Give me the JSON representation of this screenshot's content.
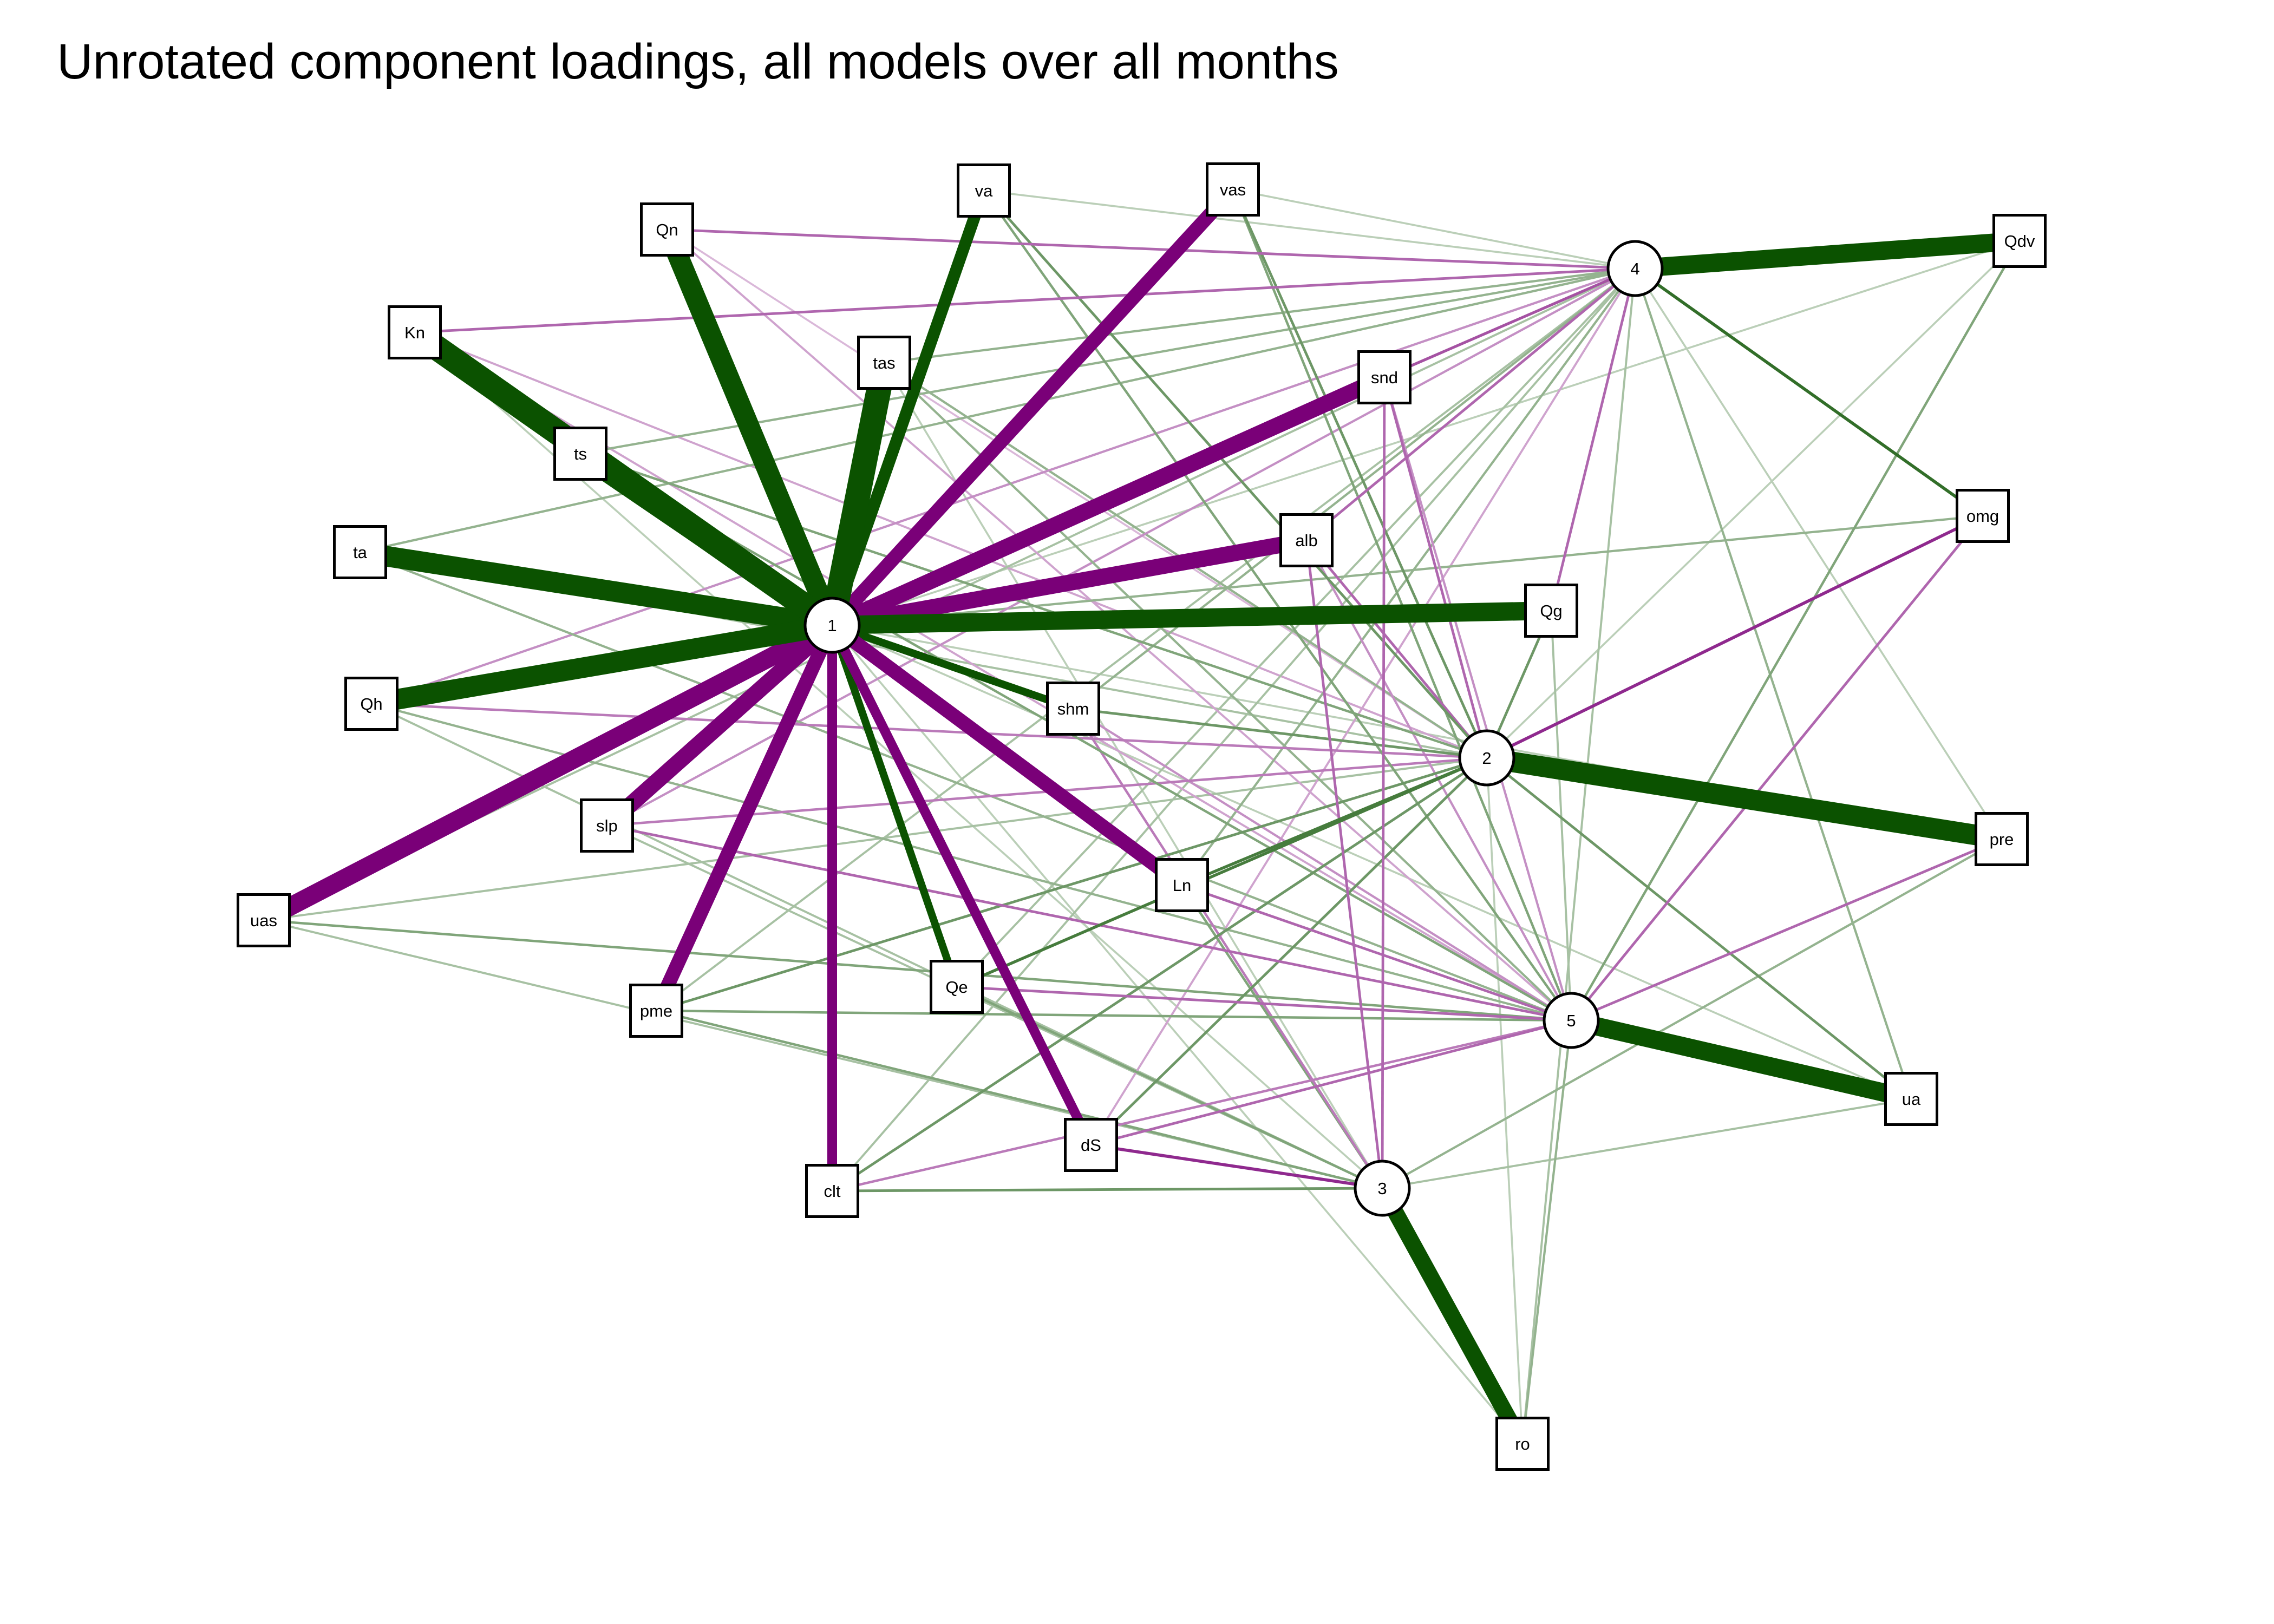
{
  "title": "Unrotated component loadings, all models over all months",
  "colors": {
    "positive": "#0b5200",
    "negative": "#7a0078"
  },
  "components": [
    "1",
    "2",
    "3",
    "4",
    "5"
  ],
  "variables": [
    "va",
    "vas",
    "Qn",
    "Qdv",
    "Kn",
    "tas",
    "snd",
    "ts",
    "omg",
    "ta",
    "alb",
    "Qg",
    "Qh",
    "shm",
    "slp",
    "pre",
    "uas",
    "Ln",
    "Qe",
    "pme",
    "ua",
    "dS",
    "clt",
    "ro"
  ],
  "loadings": [
    {
      "component": "1",
      "variable": "Qn",
      "value": 0.85
    },
    {
      "component": "1",
      "variable": "Kn",
      "value": 0.95
    },
    {
      "component": "1",
      "variable": "ts",
      "value": 0.85
    },
    {
      "component": "1",
      "variable": "ta",
      "value": 0.85
    },
    {
      "component": "1",
      "variable": "Qh",
      "value": 0.85
    },
    {
      "component": "1",
      "variable": "va",
      "value": 0.65
    },
    {
      "component": "1",
      "variable": "tas",
      "value": 0.95
    },
    {
      "component": "1",
      "variable": "vas",
      "value": -0.7
    },
    {
      "component": "1",
      "variable": "snd",
      "value": -0.75
    },
    {
      "component": "1",
      "variable": "alb",
      "value": -0.75
    },
    {
      "component": "1",
      "variable": "Qg",
      "value": 0.8
    },
    {
      "component": "1",
      "variable": "shm",
      "value": 0.55
    },
    {
      "component": "1",
      "variable": "uas",
      "value": -0.8
    },
    {
      "component": "1",
      "variable": "slp",
      "value": -0.75
    },
    {
      "component": "1",
      "variable": "pme",
      "value": -0.7
    },
    {
      "component": "1",
      "variable": "clt",
      "value": -0.6
    },
    {
      "component": "1",
      "variable": "dS",
      "value": -0.6
    },
    {
      "component": "1",
      "variable": "Ln",
      "value": -0.7
    },
    {
      "component": "1",
      "variable": "Qe",
      "value": 0.55
    },
    {
      "component": "1",
      "variable": "omg",
      "value": 0.2
    },
    {
      "component": "1",
      "variable": "Qdv",
      "value": 0.1
    },
    {
      "component": "1",
      "variable": "ua",
      "value": 0.1
    },
    {
      "component": "1",
      "variable": "pre",
      "value": 0.1
    },
    {
      "component": "1",
      "variable": "ro",
      "value": 0.1
    },
    {
      "component": "2",
      "variable": "pre",
      "value": 0.85
    },
    {
      "component": "2",
      "variable": "omg",
      "value": -0.45
    },
    {
      "component": "2",
      "variable": "Ln",
      "value": 0.4
    },
    {
      "component": "2",
      "variable": "Qe",
      "value": 0.4
    },
    {
      "component": "2",
      "variable": "Qg",
      "value": 0.3
    },
    {
      "component": "2",
      "variable": "shm",
      "value": 0.3
    },
    {
      "component": "2",
      "variable": "snd",
      "value": -0.3
    },
    {
      "component": "2",
      "variable": "alb",
      "value": -0.3
    },
    {
      "component": "2",
      "variable": "pme",
      "value": 0.3
    },
    {
      "component": "2",
      "variable": "clt",
      "value": 0.3
    },
    {
      "component": "2",
      "variable": "ua",
      "value": 0.3
    },
    {
      "component": "2",
      "variable": "dS",
      "value": 0.3
    },
    {
      "component": "2",
      "variable": "va",
      "value": 0.3
    },
    {
      "component": "2",
      "variable": "vas",
      "value": 0.3
    },
    {
      "component": "2",
      "variable": "Qh",
      "value": -0.25
    },
    {
      "component": "2",
      "variable": "slp",
      "value": -0.25
    },
    {
      "component": "2",
      "variable": "ts",
      "value": 0.25
    },
    {
      "component": "2",
      "variable": "tas",
      "value": 0.2
    },
    {
      "component": "2",
      "variable": "uas",
      "value": 0.15
    },
    {
      "component": "2",
      "variable": "ta",
      "value": 0.15
    },
    {
      "component": "2",
      "variable": "Kn",
      "value": -0.15
    },
    {
      "component": "2",
      "variable": "Qn",
      "value": -0.1
    },
    {
      "component": "2",
      "variable": "ro",
      "value": 0.1
    },
    {
      "component": "2",
      "variable": "Qdv",
      "value": 0.1
    },
    {
      "component": "3",
      "variable": "ro",
      "value": 0.75
    },
    {
      "component": "3",
      "variable": "dS",
      "value": -0.45
    },
    {
      "component": "3",
      "variable": "clt",
      "value": 0.3
    },
    {
      "component": "3",
      "variable": "snd",
      "value": -0.3
    },
    {
      "component": "3",
      "variable": "alb",
      "value": -0.3
    },
    {
      "component": "3",
      "variable": "Qe",
      "value": 0.25
    },
    {
      "component": "3",
      "variable": "pme",
      "value": 0.25
    },
    {
      "component": "3",
      "variable": "Ln",
      "value": 0.25
    },
    {
      "component": "3",
      "variable": "shm",
      "value": -0.25
    },
    {
      "component": "3",
      "variable": "pre",
      "value": 0.2
    },
    {
      "component": "3",
      "variable": "ua",
      "value": 0.15
    },
    {
      "component": "3",
      "variable": "Qh",
      "value": 0.15
    },
    {
      "component": "3",
      "variable": "uas",
      "value": 0.15
    },
    {
      "component": "3",
      "variable": "slp",
      "value": 0.15
    },
    {
      "component": "3",
      "variable": "tas",
      "value": 0.1
    },
    {
      "component": "3",
      "variable": "Kn",
      "value": 0.1
    },
    {
      "component": "4",
      "variable": "Qdv",
      "value": 0.8
    },
    {
      "component": "4",
      "variable": "omg",
      "value": 0.45
    },
    {
      "component": "4",
      "variable": "snd",
      "value": -0.35
    },
    {
      "component": "4",
      "variable": "alb",
      "value": -0.3
    },
    {
      "component": "4",
      "variable": "Qn",
      "value": -0.3
    },
    {
      "component": "4",
      "variable": "Kn",
      "value": -0.3
    },
    {
      "component": "4",
      "variable": "Qg",
      "value": -0.3
    },
    {
      "component": "4",
      "variable": "ts",
      "value": 0.2
    },
    {
      "component": "4",
      "variable": "ta",
      "value": 0.2
    },
    {
      "component": "4",
      "variable": "Qh",
      "value": -0.2
    },
    {
      "component": "4",
      "variable": "tas",
      "value": 0.2
    },
    {
      "component": "4",
      "variable": "shm",
      "value": 0.2
    },
    {
      "component": "4",
      "variable": "slp",
      "value": -0.2
    },
    {
      "component": "4",
      "variable": "Ln",
      "value": 0.2
    },
    {
      "component": "4",
      "variable": "uas",
      "value": 0.15
    },
    {
      "component": "4",
      "variable": "pme",
      "value": 0.15
    },
    {
      "component": "4",
      "variable": "Qe",
      "value": 0.15
    },
    {
      "component": "4",
      "variable": "dS",
      "value": -0.15
    },
    {
      "component": "4",
      "variable": "clt",
      "value": 0.15
    },
    {
      "component": "4",
      "variable": "ua",
      "value": 0.2
    },
    {
      "component": "4",
      "variable": "ro",
      "value": 0.15
    },
    {
      "component": "4",
      "variable": "pre",
      "value": 0.1
    },
    {
      "component": "4",
      "variable": "va",
      "value": 0.1
    },
    {
      "component": "4",
      "variable": "vas",
      "value": 0.1
    },
    {
      "component": "5",
      "variable": "ua",
      "value": 0.8
    },
    {
      "component": "5",
      "variable": "omg",
      "value": -0.3
    },
    {
      "component": "5",
      "variable": "pre",
      "value": -0.3
    },
    {
      "component": "5",
      "variable": "Qe",
      "value": -0.3
    },
    {
      "component": "5",
      "variable": "Ln",
      "value": -0.3
    },
    {
      "component": "5",
      "variable": "slp",
      "value": -0.3
    },
    {
      "component": "5",
      "variable": "dS",
      "value": -0.3
    },
    {
      "component": "5",
      "variable": "Qdv",
      "value": 0.25
    },
    {
      "component": "5",
      "variable": "pme",
      "value": 0.25
    },
    {
      "component": "5",
      "variable": "uas",
      "value": 0.25
    },
    {
      "component": "5",
      "variable": "clt",
      "value": -0.25
    },
    {
      "component": "5",
      "variable": "va",
      "value": 0.25
    },
    {
      "component": "5",
      "variable": "vas",
      "value": 0.25
    },
    {
      "component": "5",
      "variable": "ts",
      "value": 0.25
    },
    {
      "component": "5",
      "variable": "ta",
      "value": 0.2
    },
    {
      "component": "5",
      "variable": "Qh",
      "value": 0.2
    },
    {
      "component": "5",
      "variable": "shm",
      "value": -0.2
    },
    {
      "component": "5",
      "variable": "tas",
      "value": 0.2
    },
    {
      "component": "5",
      "variable": "alb",
      "value": -0.2
    },
    {
      "component": "5",
      "variable": "snd",
      "value": -0.2
    },
    {
      "component": "5",
      "variable": "Kn",
      "value": -0.15
    },
    {
      "component": "5",
      "variable": "Qn",
      "value": -0.15
    },
    {
      "component": "5",
      "variable": "ro",
      "value": 0.2
    },
    {
      "component": "5",
      "variable": "Qg",
      "value": 0.15
    }
  ]
}
